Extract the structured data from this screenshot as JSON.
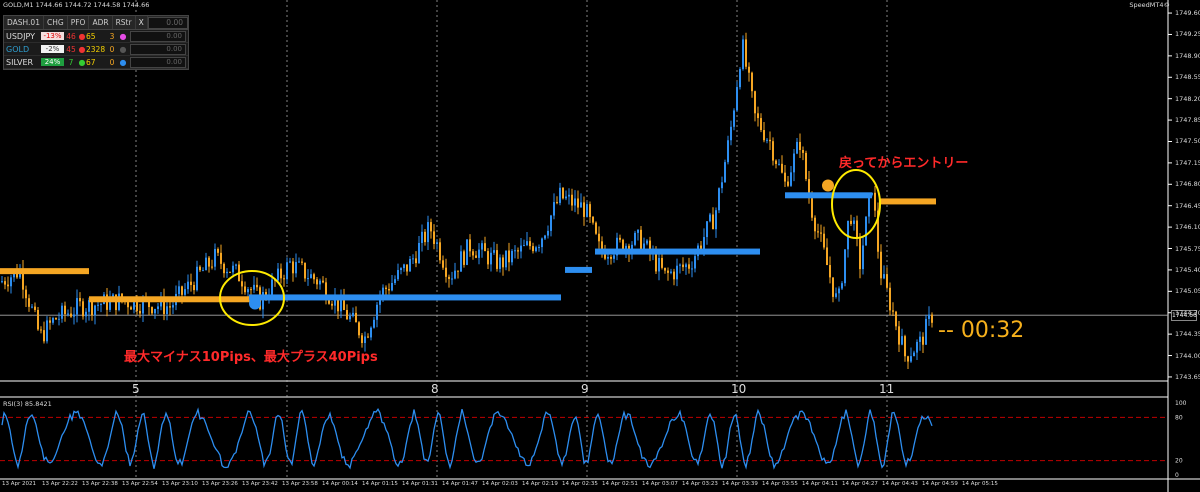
{
  "window": {
    "title": "GOLD,M1  1744.66 1744.72 1744.58 1744.66",
    "brand": "SpeedMT4©"
  },
  "dashboard": {
    "headers": [
      "DASH.01",
      "CHG",
      "PFO",
      "ADR",
      "RStr",
      "X"
    ],
    "header_value": "0.00",
    "rows": [
      {
        "symbol": "USDJPY",
        "chg": "-13%",
        "pfo": "46",
        "adr": "65",
        "rstr": "3",
        "value": "0.00"
      },
      {
        "symbol": "GOLD",
        "chg": "-2%",
        "pfo": "45",
        "adr": "2328",
        "rstr": "0",
        "value": "0.00"
      },
      {
        "symbol": "SILVER",
        "chg": "24%",
        "pfo": "7",
        "adr": "67",
        "rstr": "0",
        "value": "0.00"
      }
    ],
    "colors": {
      "usdjpy_chg_bg": "#f4dede",
      "silver_chg_bg": "#1f9e3f",
      "gold_text": "#2f9fd0"
    }
  },
  "annotations": {
    "entry_text": "戻ってからエントリー",
    "range_text": "最大マイナス10Pips、最大プラス40Pips",
    "countdown": "--  00:32"
  },
  "chart_data": {
    "type": "candlestick",
    "symbol": "GOLD",
    "timeframe": "M1",
    "current_price": "1744.66",
    "price_axis": [
      "1749.60",
      "1749.25",
      "1748.90",
      "1748.55",
      "1748.20",
      "1747.85",
      "1747.50",
      "1747.15",
      "1746.80",
      "1746.45",
      "1746.10",
      "1745.75",
      "1745.40",
      "1745.05",
      "1744.70",
      "1744.35",
      "1744.00",
      "1743.65"
    ],
    "ylim": [
      1743.6,
      1749.65
    ],
    "session_labels": [
      "5",
      "8",
      "9",
      "10",
      "11"
    ],
    "time_axis": [
      "13 Apr 2021",
      "13 Apr 22:22",
      "13 Apr 22:38",
      "13 Apr 22:54",
      "13 Apr 23:10",
      "13 Apr 23:26",
      "13 Apr 23:42",
      "13 Apr 23:58",
      "14 Apr 00:14",
      "14 Apr 01:15",
      "14 Apr 01:31",
      "14 Apr 01:47",
      "14 Apr 02:03",
      "14 Apr 02:19",
      "14 Apr 02:35",
      "14 Apr 02:51",
      "14 Apr 03:07",
      "14 Apr 03:23",
      "14 Apr 03:39",
      "14 Apr 03:55",
      "14 Apr 04:11",
      "14 Apr 04:27",
      "14 Apr 04:43",
      "14 Apr 04:59",
      "14 Apr 05:15"
    ],
    "indicator": {
      "name": "RSI(3)",
      "value": "85.8421",
      "levels": [
        "100",
        "80",
        "20",
        "0"
      ]
    },
    "colors": {
      "bull": "#2d8ef0",
      "bear": "#f5a623",
      "indicator": "#2d8ef0",
      "level_line": "#c00000"
    }
  }
}
